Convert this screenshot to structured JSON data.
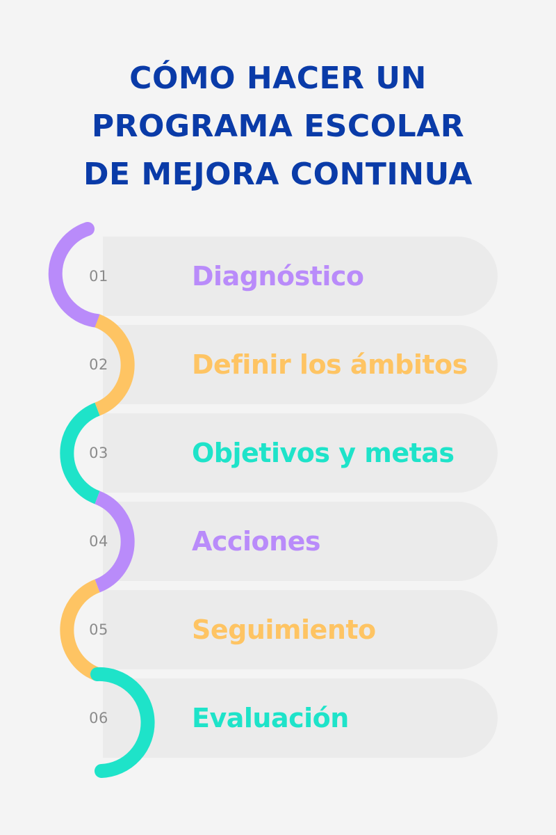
{
  "title": {
    "line1": "CÓMO HACER UN",
    "line2": "PROGRAMA ESCOLAR",
    "line3": "DE MEJORA CONTINUA"
  },
  "colors": {
    "title": "#0a3ba8",
    "purple": "#b98bfa",
    "orange": "#fec463",
    "teal": "#1ee3c9",
    "number": "#8b8b8b",
    "card": "#ebebeb",
    "background": "#f4f4f4"
  },
  "steps": [
    {
      "number": "01",
      "label": "Diagnóstico",
      "color": "purple"
    },
    {
      "number": "02",
      "label": "Definir los ámbitos",
      "color": "orange"
    },
    {
      "number": "03",
      "label": "Objetivos y metas",
      "color": "teal"
    },
    {
      "number": "04",
      "label": "Acciones",
      "color": "purple"
    },
    {
      "number": "05",
      "label": "Seguimiento",
      "color": "orange"
    },
    {
      "number": "06",
      "label": "Evaluación",
      "color": "teal"
    }
  ]
}
